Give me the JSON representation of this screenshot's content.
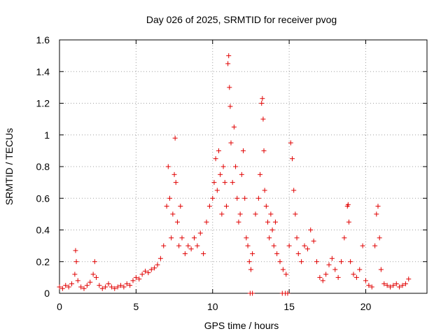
{
  "chart_data": {
    "type": "scatter",
    "title": "Day 026 of 2025, SRMTID for receiver pvog",
    "xlabel": "GPS time / hours",
    "ylabel": "SRMTID / TECUs",
    "xlim": [
      0,
      24
    ],
    "ylim": [
      0,
      1.6
    ],
    "xticks": [
      0,
      5,
      10,
      15,
      20
    ],
    "xtick_labels": [
      "0",
      "5",
      "10",
      "15",
      "20"
    ],
    "yticks": [
      0,
      0.2,
      0.4,
      0.6,
      0.8,
      1.0,
      1.2,
      1.4,
      1.6
    ],
    "ytick_labels": [
      "0",
      "0.2",
      "0.4",
      "0.6",
      "0.8",
      "1",
      "1.2",
      "1.4",
      "1.6"
    ],
    "grid": true,
    "marker": "+",
    "series": [
      {
        "name": "SRMTID",
        "color": "#e00000",
        "x": [
          0.0,
          0.2,
          0.4,
          0.6,
          0.8,
          1.0,
          1.05,
          1.1,
          1.2,
          1.4,
          1.6,
          1.8,
          2.0,
          2.2,
          2.3,
          2.4,
          2.6,
          2.8,
          3.0,
          3.2,
          3.4,
          3.6,
          3.8,
          4.0,
          4.2,
          4.4,
          4.6,
          4.8,
          5.0,
          5.2,
          5.4,
          5.6,
          5.8,
          6.0,
          6.2,
          6.4,
          6.6,
          6.8,
          7.0,
          7.1,
          7.2,
          7.3,
          7.4,
          7.5,
          7.55,
          7.6,
          7.7,
          7.8,
          7.9,
          8.0,
          8.2,
          8.4,
          8.6,
          8.8,
          9.0,
          9.2,
          9.4,
          9.6,
          9.8,
          10.0,
          10.1,
          10.2,
          10.3,
          10.4,
          10.5,
          10.6,
          10.7,
          10.8,
          10.9,
          11.0,
          11.05,
          11.1,
          11.15,
          11.2,
          11.3,
          11.4,
          11.5,
          11.6,
          11.7,
          11.8,
          11.9,
          12.0,
          12.1,
          12.2,
          12.3,
          12.4,
          12.5,
          12.6,
          12.8,
          13.0,
          13.1,
          13.2,
          13.25,
          13.3,
          13.35,
          13.4,
          13.5,
          13.6,
          13.7,
          13.8,
          13.9,
          14.0,
          14.1,
          14.2,
          14.4,
          14.6,
          14.8,
          15.0,
          15.1,
          15.2,
          15.3,
          15.4,
          15.5,
          15.6,
          15.8,
          16.0,
          16.2,
          16.4,
          16.6,
          16.8,
          17.0,
          17.2,
          17.4,
          17.6,
          17.8,
          18.0,
          18.2,
          18.4,
          18.6,
          18.8,
          18.85,
          18.9,
          19.0,
          19.2,
          19.4,
          19.6,
          19.8,
          20.0,
          20.2,
          20.4,
          20.6,
          20.7,
          20.8,
          20.9,
          21.0,
          21.2,
          21.4,
          21.6,
          21.8,
          22.0,
          22.2,
          22.4,
          22.6,
          22.8,
          12.45,
          12.6,
          14.55,
          14.75,
          14.9
        ],
        "y": [
          0.04,
          0.03,
          0.05,
          0.04,
          0.06,
          0.12,
          0.27,
          0.2,
          0.08,
          0.04,
          0.03,
          0.05,
          0.07,
          0.12,
          0.2,
          0.1,
          0.05,
          0.03,
          0.04,
          0.06,
          0.04,
          0.03,
          0.04,
          0.05,
          0.04,
          0.06,
          0.05,
          0.08,
          0.1,
          0.09,
          0.12,
          0.14,
          0.13,
          0.15,
          0.16,
          0.18,
          0.22,
          0.3,
          0.55,
          0.8,
          0.6,
          0.35,
          0.5,
          0.75,
          0.98,
          0.7,
          0.45,
          0.3,
          0.55,
          0.35,
          0.25,
          0.3,
          0.28,
          0.35,
          0.3,
          0.38,
          0.25,
          0.45,
          0.55,
          0.6,
          0.7,
          0.85,
          0.65,
          0.9,
          0.75,
          0.5,
          0.8,
          0.7,
          0.55,
          1.45,
          1.5,
          1.3,
          1.18,
          0.95,
          0.7,
          1.05,
          0.8,
          0.6,
          0.45,
          0.5,
          0.75,
          0.9,
          0.6,
          0.35,
          0.3,
          0.2,
          0.15,
          0.25,
          0.5,
          0.6,
          0.75,
          1.2,
          1.23,
          1.1,
          0.9,
          0.65,
          0.55,
          0.45,
          0.35,
          0.5,
          0.4,
          0.3,
          0.45,
          0.25,
          0.2,
          0.15,
          0.12,
          0.3,
          0.95,
          0.85,
          0.65,
          0.5,
          0.35,
          0.25,
          0.2,
          0.3,
          0.28,
          0.4,
          0.33,
          0.2,
          0.1,
          0.08,
          0.12,
          0.18,
          0.22,
          0.15,
          0.1,
          0.2,
          0.35,
          0.55,
          0.56,
          0.45,
          0.2,
          0.12,
          0.1,
          0.15,
          0.3,
          0.08,
          0.05,
          0.04,
          0.3,
          0.5,
          0.55,
          0.35,
          0.15,
          0.06,
          0.05,
          0.04,
          0.05,
          0.06,
          0.04,
          0.05,
          0.06,
          0.09,
          0.0,
          0.0,
          0.0,
          0.0,
          0.0
        ]
      }
    ]
  }
}
